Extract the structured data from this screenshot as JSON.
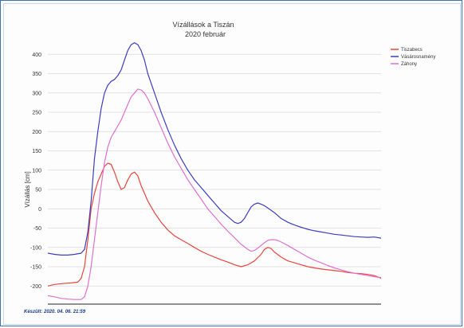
{
  "chart_data": {
    "type": "line",
    "title": "Vízállások a Tiszán",
    "subtitle": "2020 február",
    "ylabel": "Vízállás [cm]",
    "xlabel": "",
    "ylim": [
      -225,
      450
    ],
    "yticks": [
      -200,
      -150,
      -100,
      -50,
      0,
      50,
      100,
      150,
      200,
      250,
      300,
      350,
      400
    ],
    "grid": true,
    "legend": "right",
    "footnote": "Készült: 2020. 04. 06. 21:59",
    "x_range": [
      0,
      100
    ],
    "series": [
      {
        "name": "Tiszabecs",
        "color": "#e8453c",
        "points": [
          [
            0,
            -200
          ],
          [
            2,
            -196
          ],
          [
            4,
            -194
          ],
          [
            7,
            -192
          ],
          [
            9,
            -190
          ],
          [
            10,
            -180
          ],
          [
            11,
            -150
          ],
          [
            12,
            -80
          ],
          [
            13,
            0
          ],
          [
            14,
            40
          ],
          [
            15,
            70
          ],
          [
            16,
            90
          ],
          [
            17,
            110
          ],
          [
            18,
            118
          ],
          [
            19,
            115
          ],
          [
            20,
            95
          ],
          [
            21,
            70
          ],
          [
            22,
            50
          ],
          [
            23,
            55
          ],
          [
            24,
            75
          ],
          [
            25,
            90
          ],
          [
            26,
            95
          ],
          [
            27,
            85
          ],
          [
            28,
            60
          ],
          [
            29,
            40
          ],
          [
            30,
            20
          ],
          [
            32,
            -10
          ],
          [
            34,
            -35
          ],
          [
            36,
            -55
          ],
          [
            38,
            -70
          ],
          [
            40,
            -80
          ],
          [
            42,
            -90
          ],
          [
            44,
            -100
          ],
          [
            46,
            -110
          ],
          [
            48,
            -118
          ],
          [
            50,
            -125
          ],
          [
            52,
            -132
          ],
          [
            54,
            -138
          ],
          [
            56,
            -145
          ],
          [
            58,
            -150
          ],
          [
            60,
            -145
          ],
          [
            62,
            -135
          ],
          [
            64,
            -118
          ],
          [
            65,
            -105
          ],
          [
            66,
            -100
          ],
          [
            67,
            -103
          ],
          [
            68,
            -112
          ],
          [
            70,
            -125
          ],
          [
            72,
            -135
          ],
          [
            74,
            -140
          ],
          [
            76,
            -145
          ],
          [
            78,
            -150
          ],
          [
            80,
            -153
          ],
          [
            82,
            -156
          ],
          [
            84,
            -158
          ],
          [
            86,
            -160
          ],
          [
            88,
            -162
          ],
          [
            90,
            -165
          ],
          [
            92,
            -167
          ],
          [
            94,
            -168
          ],
          [
            96,
            -170
          ],
          [
            98,
            -173
          ],
          [
            100,
            -180
          ]
        ]
      },
      {
        "name": "Vásárosnamény",
        "color": "#3b3fbf",
        "points": [
          [
            0,
            -115
          ],
          [
            2,
            -118
          ],
          [
            4,
            -120
          ],
          [
            6,
            -120
          ],
          [
            8,
            -118
          ],
          [
            10,
            -115
          ],
          [
            11,
            -105
          ],
          [
            12,
            -60
          ],
          [
            13,
            20
          ],
          [
            14,
            130
          ],
          [
            15,
            200
          ],
          [
            16,
            260
          ],
          [
            17,
            300
          ],
          [
            18,
            320
          ],
          [
            19,
            330
          ],
          [
            20,
            335
          ],
          [
            21,
            345
          ],
          [
            22,
            360
          ],
          [
            23,
            385
          ],
          [
            24,
            410
          ],
          [
            25,
            425
          ],
          [
            26,
            430
          ],
          [
            27,
            425
          ],
          [
            28,
            410
          ],
          [
            29,
            385
          ],
          [
            30,
            350
          ],
          [
            32,
            300
          ],
          [
            34,
            250
          ],
          [
            36,
            205
          ],
          [
            38,
            165
          ],
          [
            40,
            130
          ],
          [
            42,
            100
          ],
          [
            44,
            75
          ],
          [
            46,
            55
          ],
          [
            48,
            35
          ],
          [
            50,
            15
          ],
          [
            52,
            -5
          ],
          [
            54,
            -20
          ],
          [
            56,
            -35
          ],
          [
            57,
            -38
          ],
          [
            58,
            -35
          ],
          [
            59,
            -25
          ],
          [
            60,
            -10
          ],
          [
            61,
            5
          ],
          [
            62,
            12
          ],
          [
            63,
            15
          ],
          [
            64,
            12
          ],
          [
            65,
            8
          ],
          [
            66,
            2
          ],
          [
            68,
            -10
          ],
          [
            70,
            -25
          ],
          [
            72,
            -35
          ],
          [
            74,
            -42
          ],
          [
            76,
            -48
          ],
          [
            78,
            -53
          ],
          [
            80,
            -57
          ],
          [
            82,
            -60
          ],
          [
            84,
            -63
          ],
          [
            86,
            -66
          ],
          [
            88,
            -68
          ],
          [
            90,
            -70
          ],
          [
            92,
            -72
          ],
          [
            94,
            -73
          ],
          [
            96,
            -74
          ],
          [
            98,
            -73
          ],
          [
            100,
            -76
          ]
        ]
      },
      {
        "name": "Záhony",
        "color": "#e070d0",
        "points": [
          [
            0,
            -225
          ],
          [
            2,
            -228
          ],
          [
            4,
            -232
          ],
          [
            6,
            -234
          ],
          [
            8,
            -235
          ],
          [
            10,
            -235
          ],
          [
            11,
            -228
          ],
          [
            12,
            -200
          ],
          [
            13,
            -150
          ],
          [
            14,
            -80
          ],
          [
            15,
            -10
          ],
          [
            16,
            60
          ],
          [
            17,
            120
          ],
          [
            18,
            160
          ],
          [
            19,
            185
          ],
          [
            20,
            200
          ],
          [
            21,
            215
          ],
          [
            22,
            230
          ],
          [
            23,
            250
          ],
          [
            24,
            270
          ],
          [
            25,
            290
          ],
          [
            26,
            300
          ],
          [
            27,
            310
          ],
          [
            28,
            308
          ],
          [
            29,
            300
          ],
          [
            30,
            285
          ],
          [
            32,
            250
          ],
          [
            34,
            210
          ],
          [
            36,
            170
          ],
          [
            38,
            135
          ],
          [
            40,
            105
          ],
          [
            42,
            75
          ],
          [
            44,
            50
          ],
          [
            46,
            25
          ],
          [
            48,
            0
          ],
          [
            50,
            -20
          ],
          [
            52,
            -40
          ],
          [
            54,
            -58
          ],
          [
            56,
            -75
          ],
          [
            58,
            -92
          ],
          [
            60,
            -105
          ],
          [
            61,
            -110
          ],
          [
            62,
            -108
          ],
          [
            63,
            -102
          ],
          [
            64,
            -95
          ],
          [
            65,
            -88
          ],
          [
            66,
            -82
          ],
          [
            67,
            -80
          ],
          [
            68,
            -80
          ],
          [
            69,
            -82
          ],
          [
            70,
            -86
          ],
          [
            72,
            -95
          ],
          [
            74,
            -105
          ],
          [
            76,
            -115
          ],
          [
            78,
            -125
          ],
          [
            80,
            -133
          ],
          [
            82,
            -140
          ],
          [
            84,
            -147
          ],
          [
            86,
            -153
          ],
          [
            88,
            -158
          ],
          [
            90,
            -163
          ],
          [
            92,
            -167
          ],
          [
            94,
            -170
          ],
          [
            96,
            -173
          ],
          [
            98,
            -176
          ],
          [
            100,
            -178
          ]
        ]
      }
    ]
  }
}
